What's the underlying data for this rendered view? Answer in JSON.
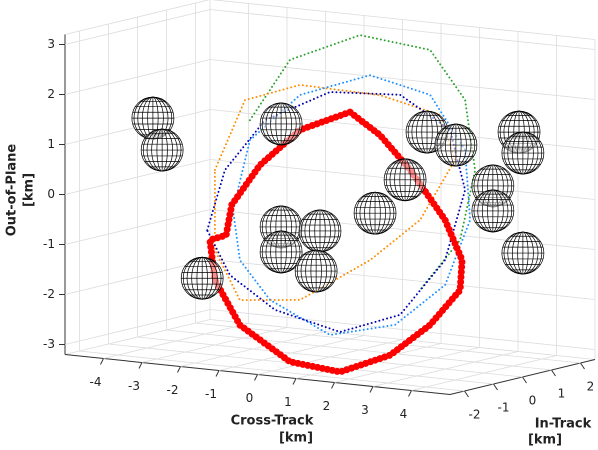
{
  "chart_data": {
    "type": "line3d",
    "xlabel": [
      "Cross-Track",
      "[km]"
    ],
    "ylabel": [
      "In-Track",
      "[km]"
    ],
    "zlabel": [
      "Out-of-Plane",
      "[km]"
    ],
    "xlim": [
      -5,
      5
    ],
    "ylim": [
      -2.5,
      2.5
    ],
    "zlim": [
      -3.2,
      3.2
    ],
    "xticks": [
      -4,
      -3,
      -2,
      -1,
      0,
      1,
      2,
      3,
      4
    ],
    "yticks": [
      -2,
      -1,
      0,
      1,
      2
    ],
    "zticks": [
      -3,
      -2,
      -1,
      0,
      1,
      2,
      3
    ],
    "grid": true,
    "series": [
      {
        "color": "#2ca02c",
        "style": "dotted",
        "x": [
          -2.08,
          -1.04,
          0.78,
          2.6,
          3.51,
          3.77,
          3.38,
          2.34
        ],
        "values": [
          1.37,
          2.66,
          3.3,
          3.15,
          2.22,
          0.84,
          -0.59,
          -1.67
        ]
      },
      {
        "color": "#ff8c00",
        "style": "dotted",
        "x": [
          -2.99,
          -2.21,
          -0.78,
          1.3,
          2.86,
          3.25,
          2.34,
          1.04,
          -0.78,
          -2.34,
          -2.99,
          -2.99
        ],
        "values": [
          0.3,
          1.76,
          2.18,
          2.14,
          1.87,
          1.0,
          -0.27,
          -1.18,
          -2.12,
          -2.25,
          -1.3,
          0.3
        ]
      },
      {
        "color": "#1e90ff",
        "style": "dotted",
        "x": [
          -2.52,
          -2.08,
          -0.78,
          1.04,
          2.6,
          3.51,
          3.64,
          2.99,
          1.69,
          0,
          -1.56,
          -2.34,
          -2.52
        ],
        "values": [
          -0.46,
          0.97,
          1.98,
          2.52,
          2.25,
          1.22,
          -0.17,
          -1.52,
          -2.42,
          -2.76,
          -2.18,
          -1.45,
          -0.46
        ]
      },
      {
        "color": "#0000b0",
        "style": "dotted",
        "x": [
          -3.19,
          -2.73,
          -1.69,
          0,
          1.82,
          3.12,
          3.51,
          2.99,
          1.82,
          0.26,
          -1.43,
          -2.6,
          -3.19
        ],
        "values": [
          -0.92,
          0.32,
          1.4,
          2.1,
          2.19,
          1.59,
          0.42,
          -1.02,
          -2.21,
          -2.68,
          -2.37,
          -1.77,
          -0.92
        ]
      },
      {
        "color": "#ff0000",
        "style": "markers",
        "x": [
          0.52,
          -0.78,
          -1.82,
          -2.55,
          -2.7,
          -3.12,
          -2.99,
          -2.34,
          -1.04,
          0.26,
          1.56,
          2.6,
          3.38,
          3.43,
          2.99,
          2.08,
          1.3,
          0.52
        ],
        "values": [
          1.74,
          1.28,
          0.49,
          -0.36,
          -0.98,
          -1.11,
          -1.9,
          -2.75,
          -3.38,
          -3.48,
          -3.04,
          -2.35,
          -1.59,
          -0.99,
          -0.22,
          0.71,
          1.34,
          1.74
        ]
      }
    ],
    "spheres": {
      "color": "#000000",
      "x": [
        -4.6,
        -4.36,
        -1.27,
        2.52,
        3.27,
        4.91,
        5.01,
        1.95,
        4.23,
        4.23,
        1.17,
        -1.27,
        -0.26,
        -1.27,
        -0.36,
        5.01,
        -3.32
      ],
      "values": [
        1.21,
        0.59,
        1.36,
        1.5,
        1.3,
        1.69,
        1.28,
        0.5,
        0.56,
        0.06,
        -0.23,
        -0.7,
        -0.7,
        -1.2,
        -1.51,
        -0.72,
        -1.89
      ]
    }
  }
}
